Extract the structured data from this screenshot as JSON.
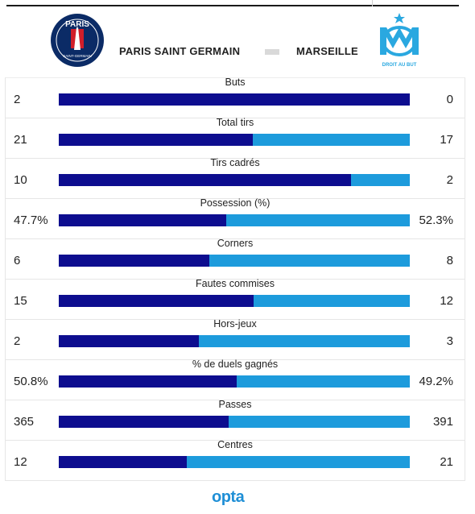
{
  "header": {
    "home_team": "PARIS SAINT GERMAIN",
    "away_team": "MARSEILLE",
    "home_logo": {
      "icon": "psg-crest-icon",
      "text_top": "PARIS",
      "text_bottom": "SAINT-GERMAIN",
      "colors": {
        "navy": "#0b2b66",
        "red": "#d11e2a"
      }
    },
    "away_logo": {
      "icon": "om-crest-icon",
      "text": "DROIT AU BUT",
      "color": "#2aa8e0"
    }
  },
  "colors": {
    "home": "#0d0d8f",
    "away": "#1d9bdc"
  },
  "stats": [
    {
      "label": "Buts",
      "home": "2",
      "away": "0",
      "home_share": 1.0
    },
    {
      "label": "Total tirs",
      "home": "21",
      "away": "17",
      "home_share": 0.553
    },
    {
      "label": "Tirs cadrés",
      "home": "10",
      "away": "2",
      "home_share": 0.833
    },
    {
      "label": "Possession (%)",
      "home": "47.7%",
      "away": "52.3%",
      "home_share": 0.477
    },
    {
      "label": "Corners",
      "home": "6",
      "away": "8",
      "home_share": 0.429
    },
    {
      "label": "Fautes commises",
      "home": "15",
      "away": "12",
      "home_share": 0.556
    },
    {
      "label": "Hors-jeux",
      "home": "2",
      "away": "3",
      "home_share": 0.4
    },
    {
      "label": "% de duels gagnés",
      "home": "50.8%",
      "away": "49.2%",
      "home_share": 0.508
    },
    {
      "label": "Passes",
      "home": "365",
      "away": "391",
      "home_share": 0.483
    },
    {
      "label": "Centres",
      "home": "12",
      "away": "21",
      "home_share": 0.364
    }
  ],
  "footer": {
    "brand": "opta"
  }
}
